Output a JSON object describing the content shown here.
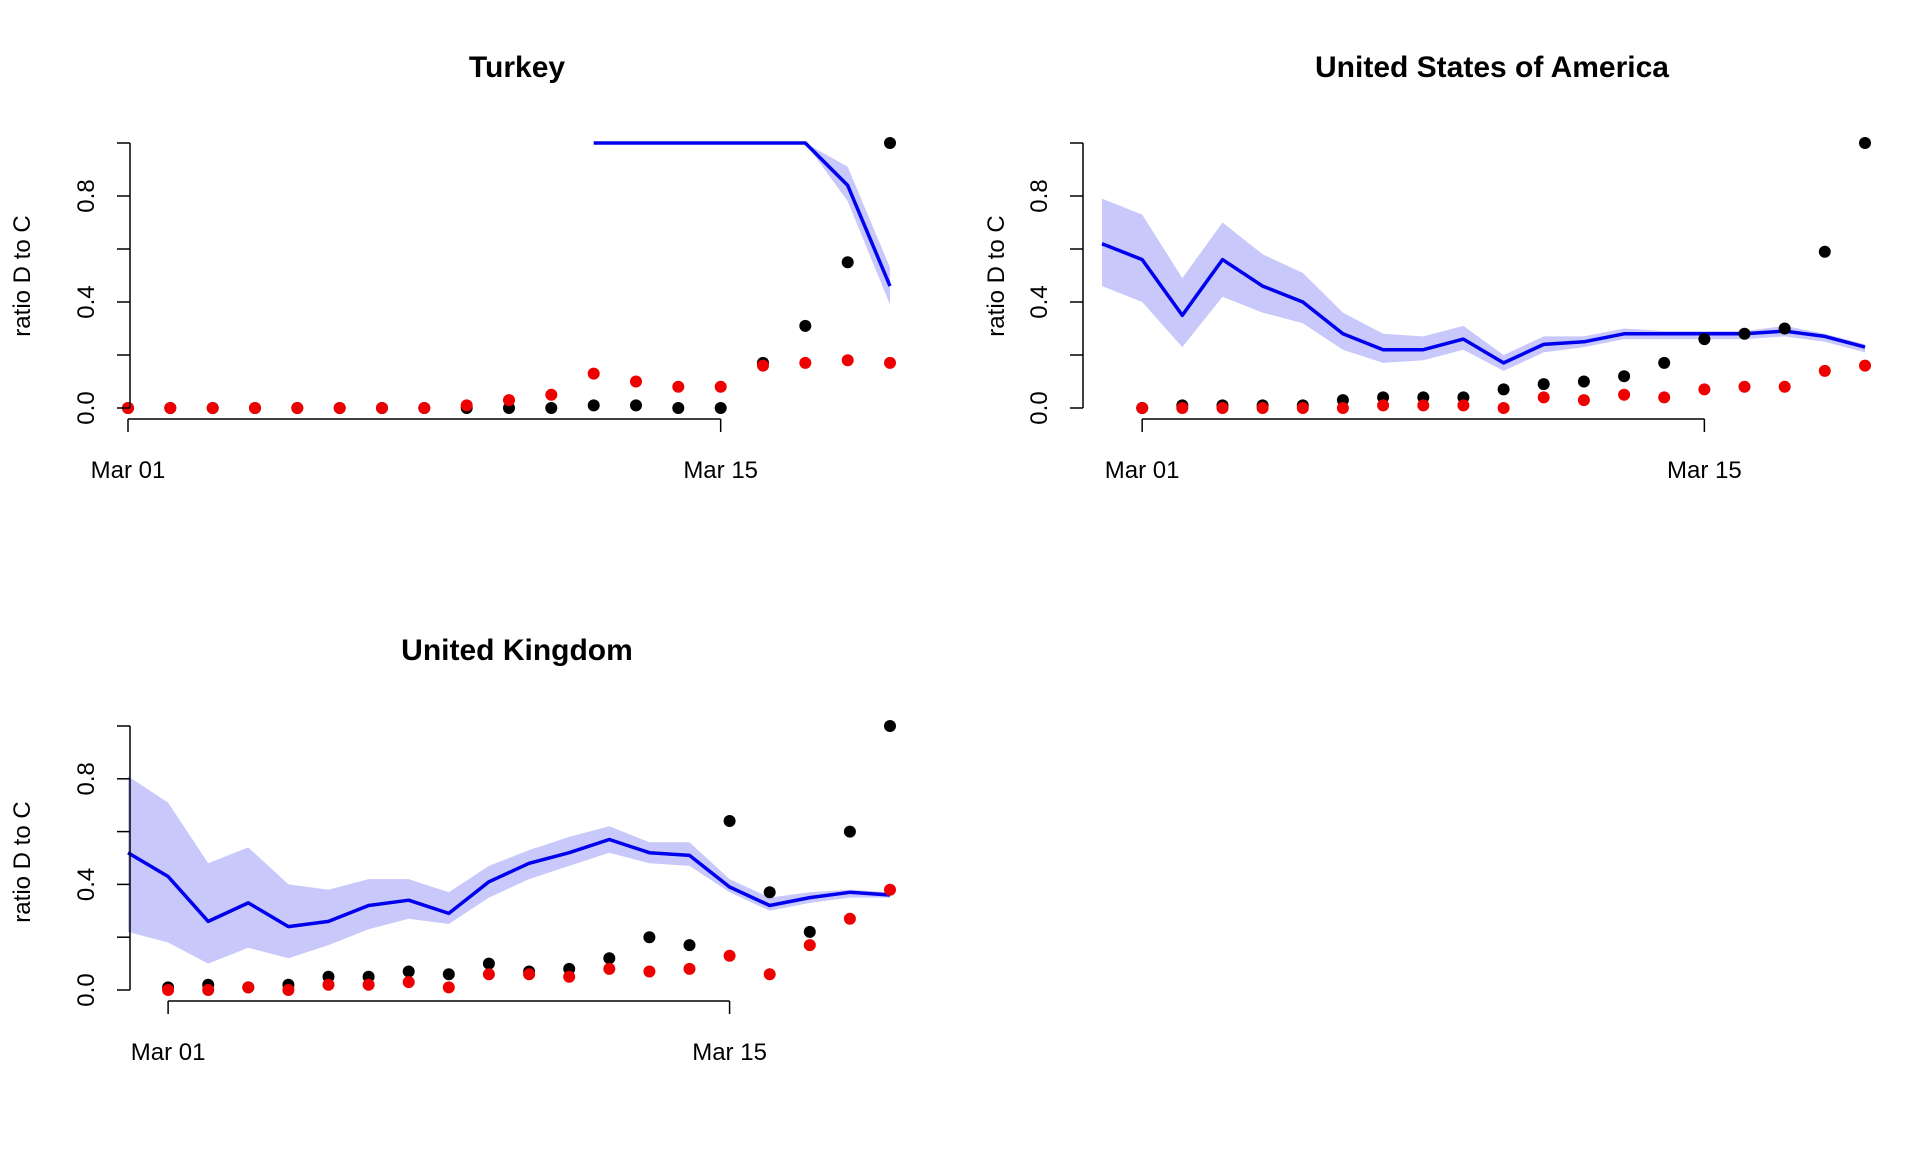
{
  "colors": {
    "black_points": "#000000",
    "red_points": "#ee0000",
    "line": "#0000ee",
    "band": "#c8c8fa"
  },
  "chart_data": [
    {
      "type": "line",
      "title": "Turkey",
      "ylabel": "ratio D to C",
      "xlabel": "",
      "x_ticks": [
        "Mar 01",
        "Mar 15"
      ],
      "y_ticks": [
        "0.0",
        "0.4",
        "0.8"
      ],
      "ylim": [
        0,
        1
      ],
      "x_range": [
        "2020-03-01",
        "2020-03-19"
      ],
      "grid": false,
      "x": [
        "2020-03-01",
        "2020-03-02",
        "2020-03-03",
        "2020-03-04",
        "2020-03-05",
        "2020-03-06",
        "2020-03-07",
        "2020-03-08",
        "2020-03-09",
        "2020-03-10",
        "2020-03-11",
        "2020-03-12",
        "2020-03-13",
        "2020-03-14",
        "2020-03-15",
        "2020-03-16",
        "2020-03-17",
        "2020-03-18",
        "2020-03-19"
      ],
      "series": [
        {
          "kind": "points",
          "color": "#000000",
          "values": [
            0,
            0,
            0,
            0,
            0,
            0,
            0,
            0,
            0,
            0,
            0,
            0.01,
            0.01,
            0,
            0,
            0.17,
            0.31,
            0.55,
            1.0
          ]
        },
        {
          "kind": "points",
          "color": "#ee0000",
          "values": [
            0,
            0,
            0,
            0,
            0,
            0,
            0,
            0,
            0.01,
            0.03,
            0.05,
            0.13,
            0.1,
            0.08,
            0.08,
            0.16,
            0.17,
            0.18,
            0.17
          ]
        },
        {
          "kind": "line",
          "color": "#0000ee",
          "values": [
            null,
            null,
            null,
            null,
            null,
            null,
            null,
            null,
            null,
            null,
            null,
            1.0,
            1.0,
            1.0,
            1.0,
            1.0,
            1.0,
            0.84,
            0.46
          ]
        },
        {
          "kind": "band",
          "color": "#c8c8fa",
          "lower": [
            null,
            null,
            null,
            null,
            null,
            null,
            null,
            null,
            null,
            null,
            null,
            1.0,
            1.0,
            1.0,
            1.0,
            1.0,
            1.0,
            0.78,
            0.39
          ],
          "upper": [
            null,
            null,
            null,
            null,
            null,
            null,
            null,
            null,
            null,
            null,
            null,
            1.0,
            1.0,
            1.0,
            1.0,
            1.0,
            1.0,
            0.91,
            0.53
          ]
        }
      ]
    },
    {
      "type": "line",
      "title": "United States of America",
      "ylabel": "ratio D to C",
      "xlabel": "",
      "x_ticks": [
        "Mar 01",
        "Mar 15"
      ],
      "y_ticks": [
        "0.0",
        "0.4",
        "0.8"
      ],
      "ylim": [
        0,
        1
      ],
      "x_range": [
        "2020-02-29",
        "2020-03-19"
      ],
      "grid": false,
      "x": [
        "2020-02-29",
        "2020-03-01",
        "2020-03-02",
        "2020-03-03",
        "2020-03-04",
        "2020-03-05",
        "2020-03-06",
        "2020-03-07",
        "2020-03-08",
        "2020-03-09",
        "2020-03-10",
        "2020-03-11",
        "2020-03-12",
        "2020-03-13",
        "2020-03-14",
        "2020-03-15",
        "2020-03-16",
        "2020-03-17",
        "2020-03-18",
        "2020-03-19"
      ],
      "series": [
        {
          "kind": "points",
          "color": "#000000",
          "values": [
            null,
            0.0,
            0.01,
            0.01,
            0.01,
            0.01,
            0.03,
            0.04,
            0.04,
            0.04,
            0.07,
            0.09,
            0.1,
            0.12,
            0.17,
            0.26,
            0.28,
            0.3,
            0.59,
            1.0
          ]
        },
        {
          "kind": "points",
          "color": "#ee0000",
          "values": [
            null,
            0.0,
            0.0,
            0.0,
            0.0,
            0.0,
            0.0,
            0.01,
            0.01,
            0.01,
            0.0,
            0.04,
            0.03,
            0.05,
            0.04,
            0.07,
            0.08,
            0.08,
            0.14,
            0.16
          ]
        },
        {
          "kind": "line",
          "color": "#0000ee",
          "values": [
            0.62,
            0.56,
            0.35,
            0.56,
            0.46,
            0.4,
            0.28,
            0.22,
            0.22,
            0.26,
            0.17,
            0.24,
            0.25,
            0.28,
            0.28,
            0.28,
            0.28,
            0.29,
            0.27,
            0.23
          ]
        },
        {
          "kind": "band",
          "color": "#c8c8fa",
          "lower": [
            0.46,
            0.4,
            0.23,
            0.42,
            0.36,
            0.32,
            0.22,
            0.17,
            0.18,
            0.22,
            0.14,
            0.21,
            0.23,
            0.26,
            0.26,
            0.26,
            0.26,
            0.27,
            0.25,
            0.21
          ],
          "upper": [
            0.79,
            0.73,
            0.49,
            0.7,
            0.58,
            0.51,
            0.36,
            0.28,
            0.27,
            0.31,
            0.2,
            0.27,
            0.27,
            0.3,
            0.29,
            0.29,
            0.29,
            0.31,
            0.28,
            0.24
          ]
        }
      ]
    },
    {
      "type": "line",
      "title": "United Kingdom",
      "ylabel": "ratio D to C",
      "xlabel": "",
      "x_ticks": [
        "Mar 01",
        "Mar 15"
      ],
      "y_ticks": [
        "0.0",
        "0.4",
        "0.8"
      ],
      "ylim": [
        0,
        1
      ],
      "x_range": [
        "2020-02-29",
        "2020-03-19"
      ],
      "grid": false,
      "x": [
        "2020-02-29",
        "2020-03-01",
        "2020-03-02",
        "2020-03-03",
        "2020-03-04",
        "2020-03-05",
        "2020-03-06",
        "2020-03-07",
        "2020-03-08",
        "2020-03-09",
        "2020-03-10",
        "2020-03-11",
        "2020-03-12",
        "2020-03-13",
        "2020-03-14",
        "2020-03-15",
        "2020-03-16",
        "2020-03-17",
        "2020-03-18",
        "2020-03-19"
      ],
      "series": [
        {
          "kind": "points",
          "color": "#000000",
          "values": [
            null,
            0.01,
            0.02,
            0.01,
            0.02,
            0.05,
            0.05,
            0.07,
            0.06,
            0.1,
            0.07,
            0.08,
            0.12,
            0.2,
            0.17,
            0.64,
            0.37,
            0.22,
            0.6,
            1.0
          ]
        },
        {
          "kind": "points",
          "color": "#ee0000",
          "values": [
            null,
            0.0,
            0.0,
            0.01,
            0.0,
            0.02,
            0.02,
            0.03,
            0.01,
            0.06,
            0.06,
            0.05,
            0.08,
            0.07,
            0.08,
            0.13,
            0.06,
            0.17,
            0.27,
            0.38
          ]
        },
        {
          "kind": "line",
          "color": "#0000ee",
          "values": [
            0.52,
            0.43,
            0.26,
            0.33,
            0.24,
            0.26,
            0.32,
            0.34,
            0.29,
            0.41,
            0.48,
            0.52,
            0.57,
            0.52,
            0.51,
            0.39,
            0.32,
            0.35,
            0.37,
            0.36
          ]
        },
        {
          "kind": "band",
          "color": "#c8c8fa",
          "lower": [
            0.22,
            0.18,
            0.1,
            0.16,
            0.12,
            0.17,
            0.23,
            0.27,
            0.25,
            0.35,
            0.42,
            0.47,
            0.52,
            0.48,
            0.47,
            0.37,
            0.3,
            0.33,
            0.35,
            0.35
          ],
          "upper": [
            0.81,
            0.71,
            0.48,
            0.54,
            0.4,
            0.38,
            0.42,
            0.42,
            0.37,
            0.47,
            0.53,
            0.58,
            0.62,
            0.56,
            0.56,
            0.42,
            0.35,
            0.37,
            0.38,
            0.37
          ]
        }
      ]
    }
  ]
}
